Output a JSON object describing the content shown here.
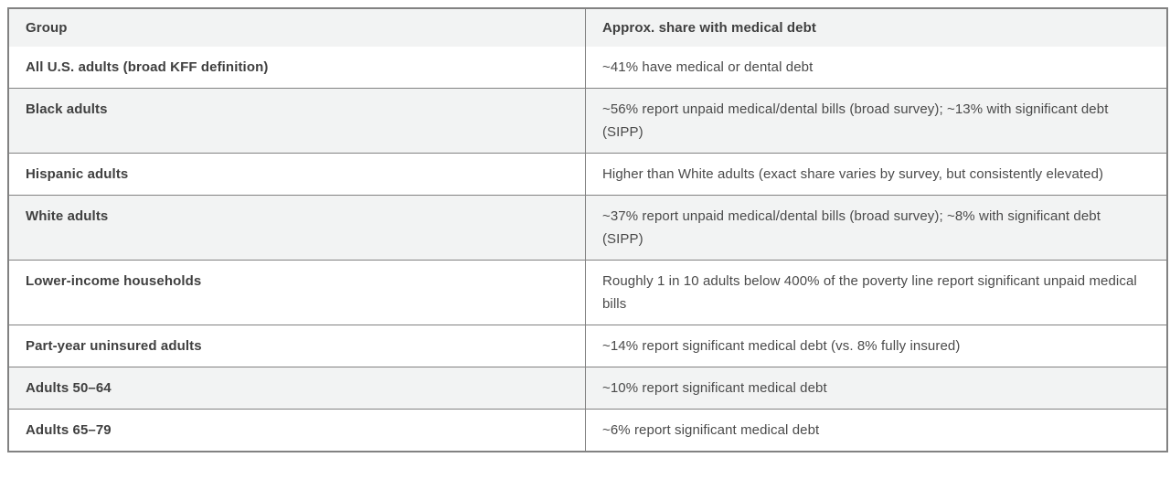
{
  "table": {
    "columns": [
      {
        "label": "Group"
      },
      {
        "label": "Approx. share with medical debt"
      }
    ],
    "rows": [
      {
        "group": "All U.S. adults (broad KFF definition)",
        "share": "~41% have medical or dental debt",
        "shaded": false
      },
      {
        "group": "Black adults",
        "share": "~56% report unpaid medical/dental bills (broad survey); ~13% with significant debt (SIPP)",
        "shaded": true
      },
      {
        "group": "Hispanic adults",
        "share": "Higher than White adults (exact share varies by survey, but consistently elevated)",
        "shaded": false
      },
      {
        "group": "White adults",
        "share": "~37% report unpaid medical/dental bills (broad survey); ~8% with significant debt (SIPP)",
        "shaded": true
      },
      {
        "group": "Lower-income households",
        "share": "Roughly 1 in 10 adults below 400% of the poverty line report significant unpaid medical bills",
        "shaded": false
      },
      {
        "group": "Part-year uninsured adults",
        "share": "~14% report significant medical debt (vs. 8% fully insured)",
        "shaded": false
      },
      {
        "group": "Adults 50–64",
        "share": "~10% report significant medical debt",
        "shaded": true
      },
      {
        "group": "Adults 65–79",
        "share": "~6% report significant medical debt",
        "shaded": false
      }
    ],
    "colors": {
      "header_bg": "#f2f3f3",
      "row_alt_bg": "#f2f3f3",
      "row_bg": "#ffffff",
      "border": "#828282",
      "header_text": "#404040",
      "cell_text": "#4a4a4a"
    }
  }
}
